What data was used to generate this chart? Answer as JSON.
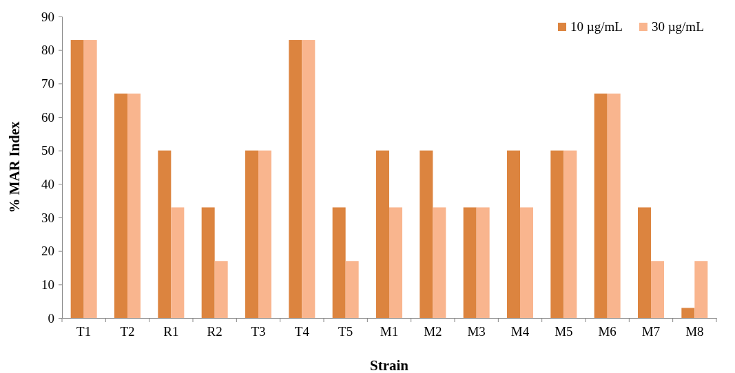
{
  "chart_data": {
    "type": "bar",
    "xlabel": "Strain",
    "ylabel": "% MAR Index",
    "categories": [
      "T1",
      "T2",
      "R1",
      "R2",
      "T3",
      "T4",
      "T5",
      "M1",
      "M2",
      "M3",
      "M4",
      "M5",
      "M6",
      "M7",
      "M8"
    ],
    "series": [
      {
        "name": "10 µg/mL",
        "color": "#dc843f",
        "values": [
          83,
          67,
          50,
          33,
          50,
          83,
          33,
          50,
          50,
          33,
          50,
          50,
          67,
          33,
          3
        ]
      },
      {
        "name": "30 µg/mL",
        "color": "#f9b58e",
        "values": [
          83,
          67,
          33,
          17,
          50,
          83,
          17,
          33,
          33,
          33,
          33,
          50,
          67,
          17,
          17
        ]
      }
    ],
    "ylim": [
      0,
      90
    ],
    "yticks": [
      0,
      10,
      20,
      30,
      40,
      50,
      60,
      70,
      80,
      90
    ],
    "grid": false,
    "legend": "top right"
  }
}
